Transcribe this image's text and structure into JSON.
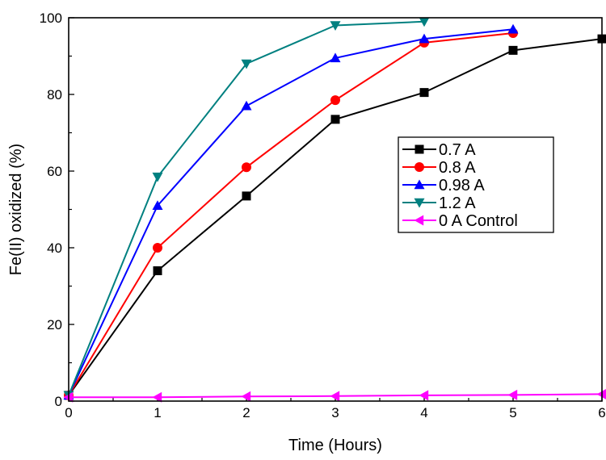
{
  "chart_data": {
    "type": "line",
    "title": "",
    "xlabel": "Time (Hours)",
    "ylabel": "Fe(II) oxidized (%)",
    "xlim": [
      0,
      6
    ],
    "ylim": [
      0,
      100
    ],
    "xticks": [
      0,
      1,
      2,
      3,
      4,
      5,
      6
    ],
    "yticks": [
      0,
      20,
      40,
      60,
      80,
      100
    ],
    "grid": false,
    "legend_position": "center-right",
    "series": [
      {
        "name": "0.7 A",
        "color": "#000000",
        "marker": "square",
        "x": [
          0,
          1,
          2,
          3,
          4,
          5,
          6
        ],
        "y": [
          1.5,
          34,
          53.5,
          73.5,
          80.5,
          91.5,
          94.5
        ]
      },
      {
        "name": "0.8 A",
        "color": "#ff0000",
        "marker": "circle",
        "x": [
          0,
          1,
          2,
          3,
          4,
          5
        ],
        "y": [
          1.5,
          40,
          61,
          78.5,
          93.5,
          96
        ]
      },
      {
        "name": "0.98 A",
        "color": "#0000ff",
        "marker": "triangle-up",
        "x": [
          0,
          1,
          2,
          3,
          4,
          5
        ],
        "y": [
          1.5,
          51,
          77,
          89.5,
          94.5,
          97
        ]
      },
      {
        "name": "1.2 A",
        "color": "#008080",
        "marker": "triangle-down",
        "x": [
          0,
          1,
          2,
          3,
          4
        ],
        "y": [
          1.5,
          58.5,
          88,
          98,
          99
        ]
      },
      {
        "name": "0 A Control",
        "color": "#ff00ff",
        "marker": "triangle-left",
        "x": [
          0,
          1,
          2,
          3,
          4,
          5,
          6
        ],
        "y": [
          1,
          1,
          1.2,
          1.3,
          1.5,
          1.6,
          1.8
        ]
      }
    ]
  }
}
